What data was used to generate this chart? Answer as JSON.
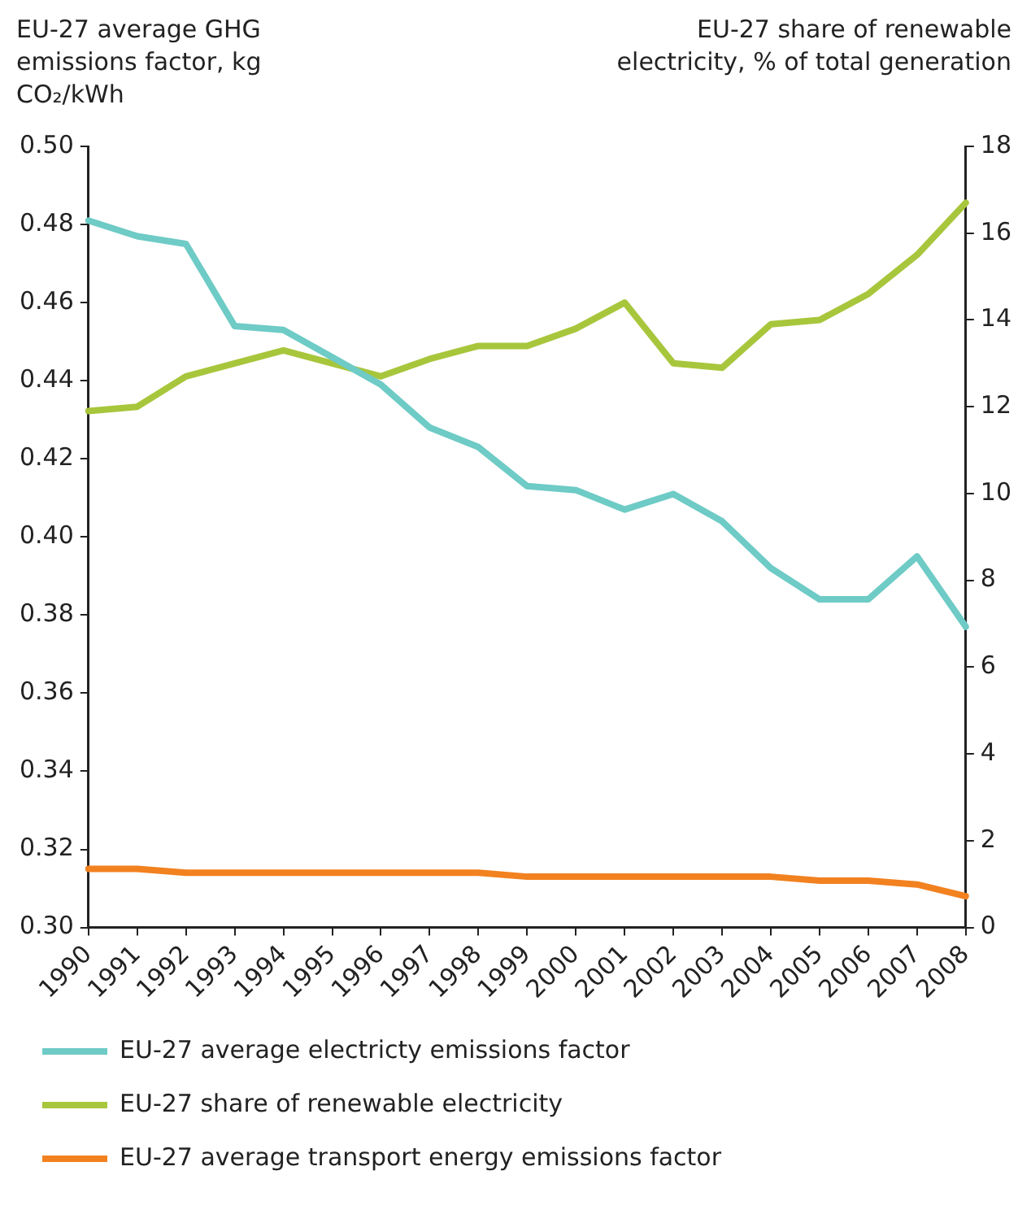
{
  "chart_data": {
    "type": "line",
    "ylabel": "EU-27 average GHG emissions factor, kg CO₂/kWh",
    "y2label": "EU-27 share of renewable electricity, % of total generation",
    "categories": [
      "1990",
      "1991",
      "1992",
      "1993",
      "1994",
      "1995",
      "1996",
      "1997",
      "1998",
      "1999",
      "2000",
      "2001",
      "2002",
      "2003",
      "2004",
      "2005",
      "2006",
      "2007",
      "2008"
    ],
    "series": [
      {
        "name": "EU-27 average electricty emissions factor",
        "color": "#6ecbc6",
        "values": [
          0.481,
          0.477,
          0.475,
          0.454,
          0.453,
          0.446,
          0.439,
          0.428,
          0.423,
          0.413,
          0.412,
          0.407,
          0.411,
          0.404,
          0.392,
          0.384,
          0.384,
          0.395,
          0.377
        ]
      },
      {
        "name": "EU-27 share of renewable electricity",
        "color": "#a8c63c",
        "axis": "y2",
        "values": [
          11.9,
          12.0,
          12.7,
          13.0,
          13.3,
          13.0,
          12.7,
          13.1,
          13.4,
          13.4,
          13.8,
          14.4,
          13.0,
          12.9,
          13.9,
          14.0,
          14.6,
          15.5,
          16.7
        ]
      },
      {
        "name": "EU-27 average transport energy emissions factor",
        "color": "#f28120",
        "values": [
          0.315,
          0.315,
          0.314,
          0.314,
          0.314,
          0.314,
          0.314,
          0.314,
          0.314,
          0.313,
          0.313,
          0.313,
          0.313,
          0.313,
          0.313,
          0.312,
          0.312,
          0.311,
          0.308
        ]
      }
    ],
    "ylim": [
      0.3,
      0.5
    ],
    "yticks": [
      {
        "value": 0.3,
        "label": "0.30"
      },
      {
        "value": 0.32,
        "label": "0.32"
      },
      {
        "value": 0.34,
        "label": "0.34"
      },
      {
        "value": 0.36,
        "label": "0.36"
      },
      {
        "value": 0.38,
        "label": "0.38"
      },
      {
        "value": 0.4,
        "label": "0.40"
      },
      {
        "value": 0.42,
        "label": "0.42"
      },
      {
        "value": 0.44,
        "label": "0.44"
      },
      {
        "value": 0.46,
        "label": "0.46"
      },
      {
        "value": 0.48,
        "label": "0.48"
      },
      {
        "value": 0.5,
        "label": "0.50"
      }
    ],
    "y2lim": [
      0,
      18
    ],
    "y2ticks": [
      0,
      2,
      4,
      6,
      8,
      10,
      12,
      14,
      16,
      18
    ],
    "legend": "bottom"
  }
}
